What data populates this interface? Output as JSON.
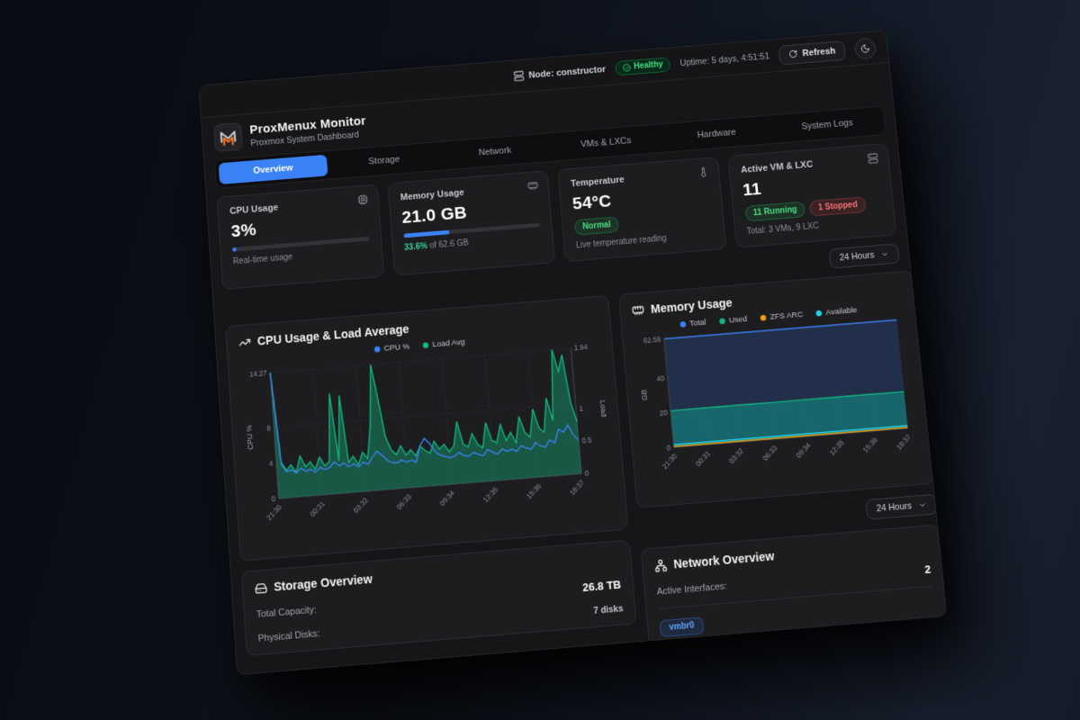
{
  "topbar": {
    "node": "Node: constructor",
    "health": "Healthy",
    "uptime": "Uptime: 5 days, 4:51:51",
    "refresh_label": "Refresh"
  },
  "header": {
    "title": "ProxMenux Monitor",
    "subtitle": "Proxmox System Dashboard"
  },
  "tabs": [
    {
      "label": "Overview",
      "active": true
    },
    {
      "label": "Storage"
    },
    {
      "label": "Network"
    },
    {
      "label": "VMs & LXCs"
    },
    {
      "label": "Hardware"
    },
    {
      "label": "System Logs"
    }
  ],
  "stats": {
    "cpu": {
      "label": "CPU Usage",
      "value": "3%",
      "percent": 3,
      "caption": "Real-time usage"
    },
    "memory": {
      "label": "Memory Usage",
      "value": "21.0 GB",
      "percent": 33.6,
      "used_pct": "33.6%",
      "of_text": " of 62.6 GB"
    },
    "temperature": {
      "label": "Temperature",
      "value": "54°C",
      "status": "Normal",
      "caption": "Live temperature reading"
    },
    "vms": {
      "label": "Active VM & LXC",
      "value": "11",
      "running": "11 Running",
      "stopped": "1 Stopped",
      "caption": "Total: 3 VMs, 9 LXC"
    }
  },
  "timeframe": {
    "value": "24 Hours"
  },
  "sections": {
    "storage": {
      "title": "Storage Overview",
      "rows": [
        {
          "label": "Total Capacity:",
          "value": "26.8 TB"
        },
        {
          "label": "Physical Disks:",
          "value": "7 disks"
        }
      ]
    },
    "network": {
      "title": "Network Overview",
      "interfaces_label": "Active Interfaces:",
      "interfaces_value": "2",
      "interface_badge": "vmbr0"
    }
  },
  "colors": {
    "accent_blue": "#3b82f6",
    "green": "#10b981",
    "green_text": "#4ade80",
    "red_text": "#f87171",
    "orange": "#f59e0b",
    "cyan": "#22d3ee"
  },
  "chart_data": [
    {
      "type": "line",
      "title": "CPU Usage & Load Average",
      "x_ticks": [
        "21:30",
        "00:31",
        "03:32",
        "06:33",
        "09:34",
        "12:35",
        "15:36",
        "18:37"
      ],
      "y_left": {
        "label": "CPU %",
        "ticks": [
          0,
          4,
          8
        ],
        "max": 14.27
      },
      "y_right": {
        "label": "Load",
        "ticks": [
          0,
          0.5,
          1
        ],
        "max": 1.94
      },
      "legend": [
        {
          "name": "CPU %",
          "color": "#3b82f6"
        },
        {
          "name": "Load Avg",
          "color": "#10b981"
        }
      ],
      "series": [
        {
          "name": "Load Avg",
          "axis": "right",
          "color": "#10b981",
          "fill": "rgba(16,185,129,0.38)",
          "values": [
            1.94,
            0.55,
            0.42,
            0.5,
            0.38,
            0.62,
            0.45,
            0.52,
            0.4,
            0.58,
            0.44,
            0.5,
            1.55,
            0.5,
            1.5,
            0.46,
            0.55,
            0.42,
            0.6,
            0.5,
            1.0,
            1.94,
            1.4,
            0.8,
            0.6,
            0.52,
            0.65,
            0.5,
            0.58,
            0.48,
            0.62,
            0.55,
            0.5,
            0.68,
            0.55,
            0.62,
            0.5,
            0.58,
            0.95,
            0.6,
            0.55,
            0.75,
            0.58,
            0.52,
            0.9,
            0.62,
            0.58,
            0.85,
            0.6,
            0.72,
            0.55,
            0.95,
            0.7,
            0.62,
            1.05,
            0.75,
            0.68,
            1.2,
            0.85,
            1.94,
            1.6,
            1.85,
            1.1,
            0.8
          ]
        },
        {
          "name": "CPU %",
          "axis": "left",
          "color": "#3b82f6",
          "values": [
            14.2,
            3.8,
            2.9,
            3.1,
            2.7,
            3.2,
            2.8,
            3.0,
            2.6,
            3.1,
            2.8,
            3.0,
            3.6,
            3.1,
            3.4,
            2.9,
            3.2,
            2.8,
            3.3,
            3.0,
            3.8,
            4.4,
            3.9,
            3.3,
            3.0,
            2.9,
            3.2,
            2.9,
            3.1,
            2.8,
            4.6,
            5.4,
            4.8,
            3.9,
            3.4,
            3.2,
            3.0,
            3.1,
            3.5,
            3.1,
            3.0,
            3.4,
            3.1,
            2.9,
            3.6,
            3.2,
            3.0,
            3.5,
            3.2,
            3.4,
            3.1,
            3.7,
            3.4,
            3.2,
            3.9,
            3.5,
            3.3,
            4.1,
            3.7,
            5.2,
            4.8,
            5.6,
            4.4,
            3.8
          ]
        }
      ]
    },
    {
      "type": "area",
      "title": "Memory Usage",
      "x_ticks": [
        "21:30",
        "00:31",
        "03:32",
        "06:33",
        "09:34",
        "12:35",
        "15:36",
        "18:37"
      ],
      "y_left": {
        "label": "GB",
        "ticks": [
          0,
          20,
          40
        ],
        "max": 62.56
      },
      "legend": [
        {
          "name": "Total",
          "color": "#3b82f6"
        },
        {
          "name": "Used",
          "color": "#10b981"
        },
        {
          "name": "ZFS ARC",
          "color": "#f59e0b"
        },
        {
          "name": "Available",
          "color": "#22d3ee"
        }
      ],
      "series": [
        {
          "name": "Total",
          "axis": "left",
          "color": "#3b82f6",
          "fill": "rgba(38,62,110,0.55)",
          "values": [
            62.56,
            62.56,
            62.56,
            62.56,
            62.56,
            62.56,
            62.56,
            62.56
          ]
        },
        {
          "name": "Used",
          "axis": "left",
          "color": "#10b981",
          "fill": "rgba(13,148,136,0.55)",
          "values": [
            21.0,
            21.05,
            21.1,
            21.0,
            21.15,
            21.1,
            21.05,
            21.0
          ]
        },
        {
          "name": "ZFS ARC",
          "axis": "left",
          "color": "#f59e0b",
          "values": [
            0.5,
            0.5,
            0.5,
            0.5,
            0.5,
            0.5,
            0.5,
            0.5
          ]
        },
        {
          "name": "Available",
          "axis": "left",
          "color": "#22d3ee",
          "values": [
            1.6,
            1.6,
            1.6,
            1.6,
            1.6,
            1.6,
            1.6,
            1.6
          ]
        }
      ]
    }
  ]
}
